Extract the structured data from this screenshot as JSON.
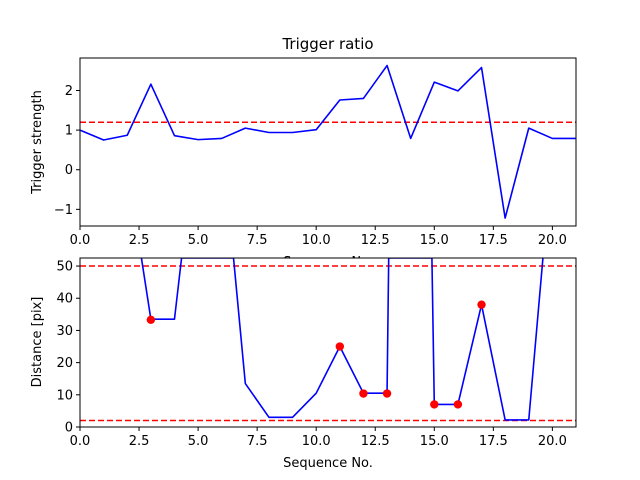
{
  "chart_data": [
    {
      "type": "line",
      "title": "Trigger ratio",
      "xlabel": "Sequence No.",
      "ylabel": "Trigger strength",
      "xlim": [
        0,
        21
      ],
      "ylim": [
        -1.42,
        2.82
      ],
      "xticks": [
        "0.0",
        "2.5",
        "5.0",
        "7.5",
        "10.0",
        "12.5",
        "15.0",
        "17.5",
        "20.0"
      ],
      "yticks": [
        "−1",
        "0",
        "1",
        "2"
      ],
      "series": [
        {
          "color": "#0000ff",
          "x": [
            0,
            1,
            2,
            3,
            4,
            5,
            6,
            7,
            8,
            9,
            10,
            11,
            12,
            13,
            14,
            15,
            16,
            17,
            18,
            19,
            20,
            21
          ],
          "y": [
            1.0,
            0.75,
            0.87,
            2.16,
            0.86,
            0.76,
            0.79,
            1.05,
            0.94,
            0.94,
            1.01,
            1.76,
            1.8,
            2.63,
            0.79,
            2.21,
            1.99,
            2.58,
            -1.22,
            1.05,
            0.79,
            0.79
          ]
        }
      ],
      "hlines": [
        {
          "y": 1.2,
          "color": "#ff0000",
          "style": "dashed"
        }
      ],
      "grid": false
    },
    {
      "type": "line",
      "title": "",
      "xlabel": "Sequence No.",
      "ylabel": "Distance [pix]",
      "xlim": [
        0,
        21
      ],
      "ylim": [
        0,
        52.5
      ],
      "xticks": [
        "0.0",
        "2.5",
        "5.0",
        "7.5",
        "10.0",
        "12.5",
        "15.0",
        "17.5",
        "20.0"
      ],
      "yticks": [
        "0",
        "10",
        "20",
        "30",
        "40",
        "50"
      ],
      "series": [
        {
          "color": "#0000ff",
          "x": [
            2.6,
            3,
            4,
            4.3,
            6.5,
            7,
            8,
            9,
            10,
            11,
            12,
            13,
            13.07,
            14.9,
            15,
            16,
            17,
            18,
            19,
            19.6
          ],
          "y": [
            52.5,
            33.5,
            33.5,
            52.5,
            52.5,
            13.5,
            3,
            3,
            10.5,
            25,
            10.5,
            10.5,
            52.5,
            52.5,
            7,
            7,
            38,
            2.2,
            2.2,
            52.5
          ]
        },
        {
          "type": "scatter",
          "color": "#ff0000",
          "x": [
            3,
            11,
            12,
            13,
            15,
            16,
            17
          ],
          "y": [
            33.3,
            25,
            10.4,
            10.4,
            7,
            7,
            38
          ]
        }
      ],
      "hlines": [
        {
          "y": 50,
          "color": "#ff0000",
          "style": "dashed"
        },
        {
          "y": 2,
          "color": "#ff0000",
          "style": "dashed"
        }
      ],
      "grid": false
    }
  ]
}
